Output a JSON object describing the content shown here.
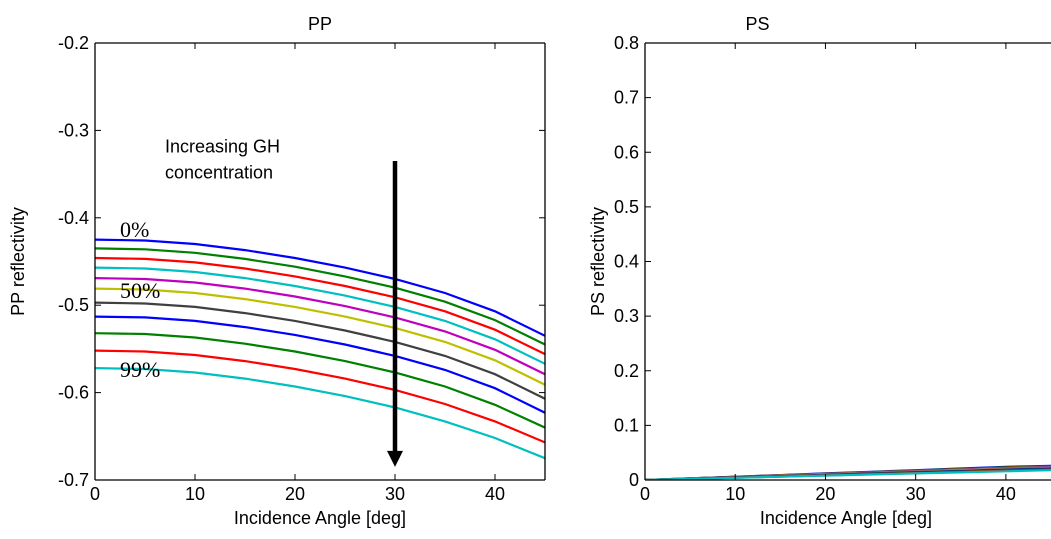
{
  "chart_data": [
    {
      "type": "line",
      "title": "PP",
      "xlabel": "Incidence Angle [deg]",
      "ylabel": "PP reflectivity",
      "xlim": [
        0,
        45
      ],
      "ylim": [
        -0.7,
        -0.2
      ],
      "xticks": [
        0,
        10,
        20,
        30,
        40
      ],
      "yticks": [
        -0.7,
        -0.6,
        -0.5,
        -0.4,
        -0.3,
        -0.2
      ],
      "ytick_labels": [
        "-0.7",
        "-0.6",
        "-0.5",
        "-0.4",
        "-0.3",
        "-0.2"
      ],
      "grid": false,
      "legend": "none",
      "x": [
        0,
        5,
        10,
        15,
        20,
        25,
        30,
        35,
        40,
        45
      ],
      "series": [
        {
          "color": "#0000ff",
          "values": [
            -0.425,
            -0.426,
            -0.43,
            -0.437,
            -0.446,
            -0.457,
            -0.47,
            -0.486,
            -0.507,
            -0.535
          ]
        },
        {
          "color": "#008000",
          "values": [
            -0.435,
            -0.436,
            -0.44,
            -0.447,
            -0.456,
            -0.467,
            -0.48,
            -0.496,
            -0.517,
            -0.545
          ]
        },
        {
          "color": "#ff0000",
          "values": [
            -0.446,
            -0.447,
            -0.451,
            -0.458,
            -0.467,
            -0.478,
            -0.491,
            -0.507,
            -0.528,
            -0.556
          ]
        },
        {
          "color": "#00bfbf",
          "values": [
            -0.457,
            -0.458,
            -0.462,
            -0.469,
            -0.478,
            -0.489,
            -0.502,
            -0.518,
            -0.539,
            -0.567
          ]
        },
        {
          "color": "#bf00bf",
          "values": [
            -0.469,
            -0.47,
            -0.474,
            -0.481,
            -0.49,
            -0.501,
            -0.514,
            -0.53,
            -0.551,
            -0.579
          ]
        },
        {
          "color": "#bfbf00",
          "values": [
            -0.481,
            -0.482,
            -0.486,
            -0.493,
            -0.502,
            -0.513,
            -0.526,
            -0.542,
            -0.563,
            -0.591
          ]
        },
        {
          "color": "#404040",
          "values": [
            -0.497,
            -0.498,
            -0.502,
            -0.509,
            -0.518,
            -0.529,
            -0.542,
            -0.558,
            -0.579,
            -0.607
          ]
        },
        {
          "color": "#0000ff",
          "values": [
            -0.513,
            -0.514,
            -0.518,
            -0.525,
            -0.534,
            -0.545,
            -0.558,
            -0.574,
            -0.595,
            -0.623
          ]
        },
        {
          "color": "#008000",
          "values": [
            -0.532,
            -0.533,
            -0.537,
            -0.544,
            -0.553,
            -0.564,
            -0.577,
            -0.593,
            -0.614,
            -0.64
          ]
        },
        {
          "color": "#ff0000",
          "values": [
            -0.552,
            -0.553,
            -0.557,
            -0.564,
            -0.573,
            -0.584,
            -0.597,
            -0.613,
            -0.633,
            -0.657
          ]
        },
        {
          "color": "#00bfbf",
          "values": [
            -0.572,
            -0.573,
            -0.577,
            -0.584,
            -0.593,
            -0.604,
            -0.617,
            -0.633,
            -0.652,
            -0.675
          ]
        }
      ],
      "annotations": [
        {
          "text": "Increasing GH",
          "x": 7,
          "y": -0.325
        },
        {
          "text": "concentration",
          "x": 7,
          "y": -0.355
        },
        {
          "text": "0%",
          "x": 2.5,
          "y": -0.422
        },
        {
          "text": "50%",
          "x": 2.5,
          "y": -0.492
        },
        {
          "text": "99%",
          "x": 2.5,
          "y": -0.582
        }
      ],
      "arrow": {
        "x": 30,
        "y_start": -0.335,
        "y_end": -0.685
      }
    },
    {
      "type": "line",
      "title": "PS",
      "xlabel": "Incidence Angle [deg]",
      "ylabel": "PS reflectivity",
      "xlim": [
        0,
        45
      ],
      "ylim": [
        0,
        0.8
      ],
      "xticks": [
        0,
        10,
        20,
        30,
        40
      ],
      "yticks": [
        0,
        0.1,
        0.2,
        0.3,
        0.4,
        0.5,
        0.6,
        0.7,
        0.8
      ],
      "ytick_labels": [
        "0",
        "0.1",
        "0.2",
        "0.3",
        "0.4",
        "0.5",
        "0.6",
        "0.7",
        "0.8"
      ],
      "grid": false,
      "legend": "none",
      "x": [
        0,
        5,
        10,
        15,
        20,
        25,
        30,
        35,
        40,
        45
      ],
      "series": [
        {
          "color": "#0000ff",
          "values": [
            0,
            0.003,
            0.006,
            0.009,
            0.012,
            0.015,
            0.018,
            0.021,
            0.024,
            0.026
          ]
        },
        {
          "color": "#008000",
          "values": [
            0,
            0.0029,
            0.0058,
            0.0087,
            0.0116,
            0.0145,
            0.0174,
            0.0203,
            0.0232,
            0.0252
          ]
        },
        {
          "color": "#ff0000",
          "values": [
            0,
            0.0028,
            0.0056,
            0.0084,
            0.0112,
            0.014,
            0.0168,
            0.0196,
            0.0224,
            0.0244
          ]
        },
        {
          "color": "#00bfbf",
          "values": [
            0,
            0.0027,
            0.0054,
            0.0081,
            0.0108,
            0.0135,
            0.0162,
            0.0189,
            0.0216,
            0.0236
          ]
        },
        {
          "color": "#bf00bf",
          "values": [
            0,
            0.0026,
            0.0052,
            0.0078,
            0.0104,
            0.013,
            0.0156,
            0.0182,
            0.0208,
            0.0228
          ]
        },
        {
          "color": "#bfbf00",
          "values": [
            0,
            0.0025,
            0.005,
            0.0075,
            0.01,
            0.0125,
            0.015,
            0.0175,
            0.02,
            0.022
          ]
        },
        {
          "color": "#404040",
          "values": [
            0,
            0.0024,
            0.0048,
            0.0072,
            0.0096,
            0.012,
            0.0144,
            0.0168,
            0.0192,
            0.0212
          ]
        },
        {
          "color": "#0000ff",
          "values": [
            0,
            0.0023,
            0.0046,
            0.0069,
            0.0092,
            0.0115,
            0.0138,
            0.0161,
            0.0184,
            0.0204
          ]
        },
        {
          "color": "#008000",
          "values": [
            0,
            0.0022,
            0.0044,
            0.0066,
            0.0088,
            0.011,
            0.0132,
            0.0154,
            0.0176,
            0.0196
          ]
        },
        {
          "color": "#ff0000",
          "values": [
            0,
            0.0021,
            0.0042,
            0.0063,
            0.0084,
            0.0105,
            0.0126,
            0.0147,
            0.0168,
            0.0188
          ]
        },
        {
          "color": "#00bfbf",
          "values": [
            0,
            0.002,
            0.004,
            0.006,
            0.008,
            0.01,
            0.012,
            0.014,
            0.016,
            0.018
          ]
        }
      ]
    }
  ]
}
